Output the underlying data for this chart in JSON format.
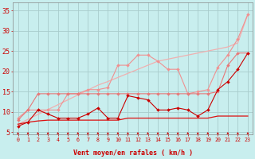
{
  "bg_color": "#c8eeee",
  "grid_color": "#a8cccc",
  "xlabel": "Vent moyen/en rafales ( km/h )",
  "ylim": [
    4.5,
    37
  ],
  "xlim": [
    -0.5,
    23.5
  ],
  "yticks": [
    5,
    10,
    15,
    20,
    25,
    30,
    35
  ],
  "xticks": [
    0,
    1,
    2,
    3,
    4,
    5,
    6,
    7,
    8,
    9,
    10,
    11,
    12,
    13,
    14,
    15,
    16,
    17,
    18,
    19,
    20,
    21,
    22,
    23
  ],
  "x": [
    0,
    1,
    2,
    3,
    4,
    5,
    6,
    7,
    8,
    9,
    10,
    11,
    12,
    13,
    14,
    15,
    16,
    17,
    18,
    19,
    20,
    21,
    22,
    23
  ],
  "line_linear_light": [
    7.0,
    8.2,
    9.4,
    10.6,
    11.8,
    13.0,
    14.2,
    15.4,
    16.6,
    17.5,
    18.5,
    19.5,
    20.5,
    21.5,
    22.5,
    23.0,
    23.5,
    24.0,
    24.5,
    25.0,
    25.5,
    26.0,
    27.0,
    34.0
  ],
  "line_linear_light_color": "#f0b0b0",
  "line_rafales_upper": [
    8.5,
    10.5,
    10.5,
    10.5,
    10.5,
    14.5,
    14.5,
    15.5,
    15.5,
    16.0,
    21.5,
    21.5,
    24.0,
    24.0,
    22.5,
    20.5,
    20.5,
    14.5,
    15.0,
    15.5,
    21.0,
    24.0,
    28.0,
    34.0
  ],
  "line_rafales_upper_color": "#f09090",
  "line_rafales_lower": [
    8.0,
    10.5,
    14.5,
    14.5,
    14.5,
    14.5,
    14.5,
    14.5,
    14.5,
    14.5,
    14.5,
    14.5,
    14.5,
    14.5,
    14.5,
    14.5,
    14.5,
    14.5,
    14.5,
    14.5,
    15.0,
    21.5,
    24.5,
    24.5
  ],
  "line_rafales_lower_color": "#e87878",
  "line_mean_jagged": [
    6.5,
    7.5,
    10.5,
    9.5,
    8.5,
    8.5,
    8.5,
    9.5,
    11.0,
    8.5,
    8.5,
    14.0,
    13.5,
    13.0,
    10.5,
    10.5,
    11.0,
    10.5,
    9.0,
    10.5,
    15.5,
    17.5,
    20.5,
    24.5
  ],
  "line_mean_jagged_color": "#cc0000",
  "line_baseline": [
    7.0,
    7.5,
    7.8,
    8.0,
    8.0,
    8.0,
    8.0,
    8.0,
    8.0,
    8.0,
    8.0,
    8.5,
    8.5,
    8.5,
    8.5,
    8.5,
    8.5,
    8.5,
    8.5,
    8.5,
    9.0,
    9.0,
    9.0,
    9.0
  ],
  "line_baseline_color": "#dd1111",
  "arrow_color": "#cc0000",
  "tick_color": "#cc0000",
  "xlabel_color": "#cc0000"
}
